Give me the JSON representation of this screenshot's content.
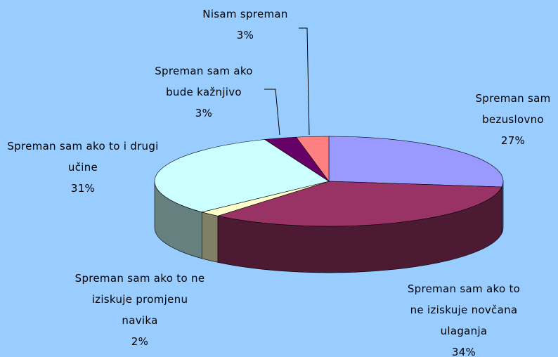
{
  "chart_data": {
    "type": "pie",
    "categories": [
      "Spreman sam bezuslovno",
      "Spreman sam ako to ne iziskuje novčana ulaganja",
      "Spreman sam ako to ne iziskuje promjenu navika",
      "Spreman sam ako to i drugi učine",
      "Spreman sam ako bude kažnjivo",
      "Nisam spreman"
    ],
    "values": [
      27,
      34,
      2,
      31,
      3,
      3
    ],
    "value_labels": [
      "27%",
      "34%",
      "2%",
      "31%",
      "3%",
      "3%"
    ],
    "colors": [
      "#9999ff",
      "#993366",
      "#ffffcc",
      "#ccffff",
      "#660066",
      "#ff8080"
    ]
  }
}
